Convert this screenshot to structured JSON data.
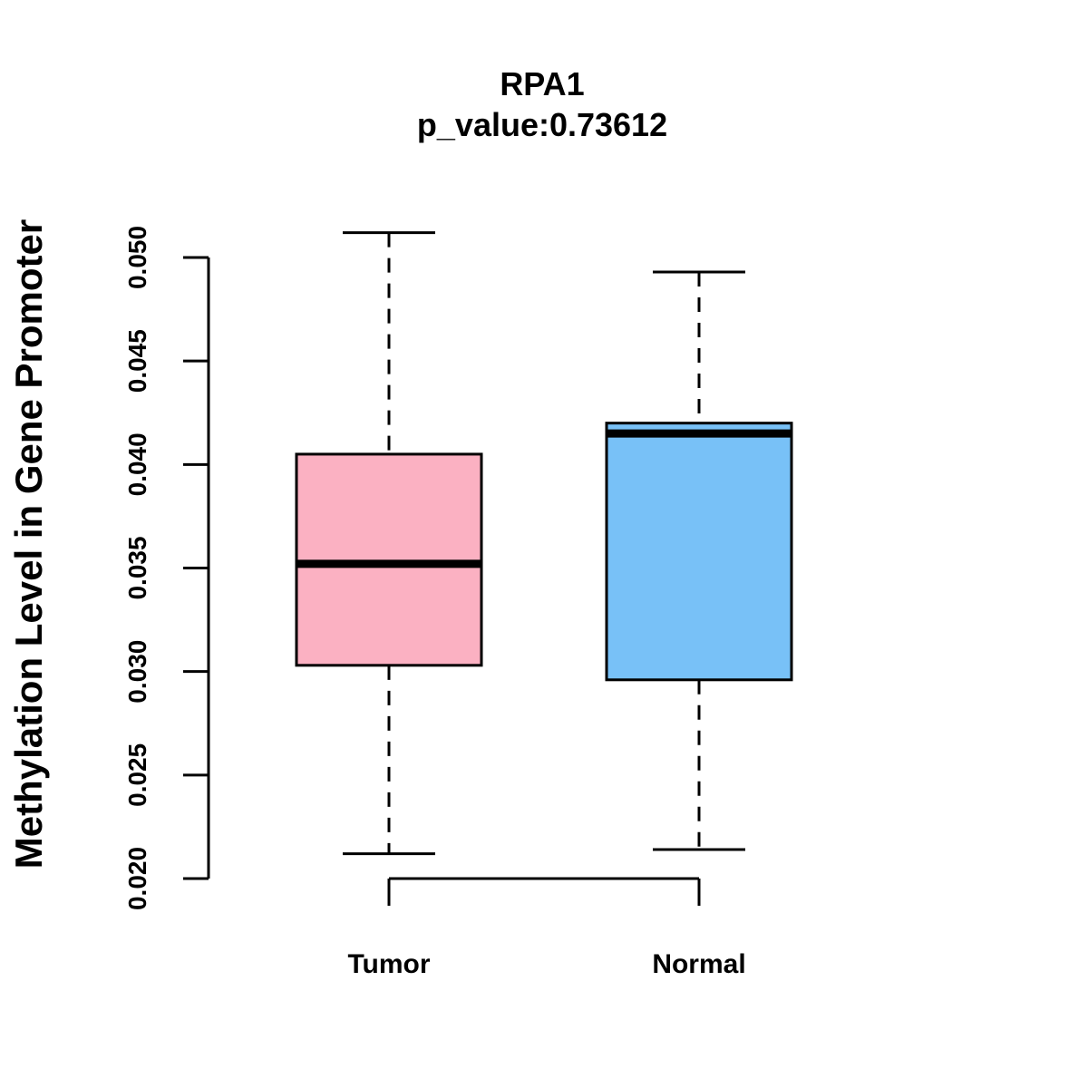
{
  "chart_data": {
    "type": "boxplot",
    "title": "RPA1",
    "subtitle": "p_value:0.73612",
    "ylabel": "Methylation Level in Gene Promoter",
    "xlabel": "",
    "ylim": [
      0.02,
      0.05
    ],
    "yticks": [
      0.02,
      0.025,
      0.03,
      0.035,
      0.04,
      0.045,
      0.05
    ],
    "ytick_labels": [
      "0.020",
      "0.025",
      "0.030",
      "0.035",
      "0.040",
      "0.045",
      "0.050"
    ],
    "grid": false,
    "categories": [
      "Tumor",
      "Normal"
    ],
    "series": [
      {
        "name": "Tumor",
        "min": 0.0212,
        "q1": 0.0303,
        "median": 0.0352,
        "q3": 0.0405,
        "max": 0.0512,
        "color": "#FBB1C2"
      },
      {
        "name": "Normal",
        "min": 0.0214,
        "q1": 0.0296,
        "median": 0.0415,
        "q3": 0.042,
        "max": 0.0493,
        "color": "#78C1F7"
      }
    ]
  }
}
